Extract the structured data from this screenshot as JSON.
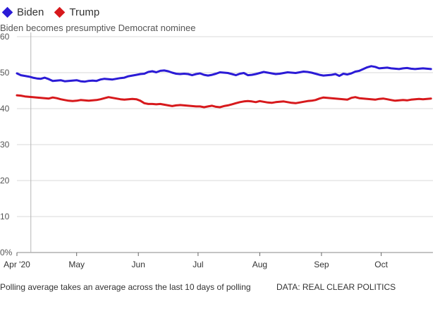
{
  "legend": [
    {
      "name": "Biden",
      "color": "#2b1bd6"
    },
    {
      "name": "Trump",
      "color": "#d7191c"
    }
  ],
  "annotation": "Biden becomes presumptive Democrat nominee",
  "footnote": "Polling average takes an average across the last 10 days of polling",
  "source": "DATA: REAL CLEAR POLITICS",
  "chart_data": {
    "type": "line",
    "title": "",
    "xlabel": "",
    "ylabel": "",
    "ylim": [
      0,
      60
    ],
    "yticks": [
      {
        "value": 0,
        "label": "0%"
      },
      {
        "value": 10,
        "label": "10"
      },
      {
        "value": 20,
        "label": "20"
      },
      {
        "value": 30,
        "label": "30"
      },
      {
        "value": 40,
        "label": "40"
      },
      {
        "value": 50,
        "label": "50"
      },
      {
        "value": 60,
        "label": "60"
      }
    ],
    "xlim": [
      0,
      209
    ],
    "xticks": [
      {
        "day": 0,
        "label": "Apr '20"
      },
      {
        "day": 30,
        "label": "May"
      },
      {
        "day": 61,
        "label": "Jun"
      },
      {
        "day": 91,
        "label": "Jul"
      },
      {
        "day": 122,
        "label": "Aug"
      },
      {
        "day": 153,
        "label": "Sep"
      },
      {
        "day": 183,
        "label": "Oct"
      }
    ],
    "annotation_day": 7,
    "x": [
      0,
      2,
      4,
      6,
      8,
      10,
      12,
      14,
      16,
      18,
      20,
      22,
      24,
      26,
      28,
      30,
      32,
      34,
      36,
      38,
      40,
      42,
      44,
      46,
      48,
      50,
      52,
      54,
      56,
      58,
      60,
      62,
      64,
      66,
      68,
      70,
      72,
      74,
      76,
      78,
      80,
      82,
      84,
      86,
      88,
      90,
      92,
      94,
      96,
      98,
      100,
      102,
      104,
      106,
      108,
      110,
      112,
      114,
      116,
      118,
      120,
      122,
      124,
      126,
      128,
      130,
      132,
      134,
      136,
      138,
      140,
      142,
      144,
      146,
      148,
      150,
      152,
      154,
      156,
      158,
      160,
      162,
      164,
      166,
      168,
      170,
      172,
      174,
      176,
      178,
      180,
      182,
      184,
      186,
      188,
      190,
      192,
      194,
      196,
      198,
      200,
      202,
      204,
      206,
      208
    ],
    "series": [
      {
        "name": "Biden",
        "color": "#2b1bd6",
        "values": [
          49.8,
          49.3,
          49.1,
          48.9,
          48.6,
          48.4,
          48.3,
          48.6,
          48.2,
          47.7,
          47.8,
          47.9,
          47.6,
          47.7,
          47.8,
          47.9,
          47.6,
          47.5,
          47.7,
          47.8,
          47.7,
          48.1,
          48.3,
          48.2,
          48.1,
          48.3,
          48.5,
          48.6,
          49.0,
          49.2,
          49.4,
          49.6,
          49.7,
          50.2,
          50.4,
          50.1,
          50.5,
          50.6,
          50.4,
          50.0,
          49.7,
          49.6,
          49.7,
          49.6,
          49.3,
          49.6,
          49.8,
          49.4,
          49.2,
          49.4,
          49.7,
          50.1,
          50.0,
          49.9,
          49.6,
          49.3,
          49.7,
          49.9,
          49.3,
          49.4,
          49.6,
          49.9,
          50.2,
          50.0,
          49.8,
          49.6,
          49.7,
          49.9,
          50.1,
          50.0,
          49.9,
          50.1,
          50.3,
          50.2,
          50.0,
          49.7,
          49.4,
          49.2,
          49.3,
          49.4,
          49.6,
          49.1,
          49.7,
          49.5,
          49.8,
          50.3,
          50.5,
          51.0,
          51.5,
          51.8,
          51.6,
          51.2,
          51.3,
          51.4,
          51.2,
          51.1,
          51.0,
          51.2,
          51.3,
          51.1,
          51.0,
          51.1,
          51.2,
          51.1,
          51.0
        ]
      },
      {
        "name": "Trump",
        "color": "#d7191c",
        "values": [
          43.7,
          43.6,
          43.4,
          43.3,
          43.2,
          43.1,
          43.0,
          42.9,
          42.8,
          43.1,
          42.9,
          42.6,
          42.4,
          42.2,
          42.1,
          42.2,
          42.4,
          42.3,
          42.2,
          42.3,
          42.4,
          42.6,
          42.9,
          43.2,
          43.0,
          42.8,
          42.6,
          42.5,
          42.6,
          42.7,
          42.6,
          42.2,
          41.5,
          41.3,
          41.3,
          41.2,
          41.3,
          41.1,
          40.9,
          40.7,
          40.9,
          41.0,
          40.9,
          40.8,
          40.7,
          40.6,
          40.6,
          40.4,
          40.6,
          40.8,
          40.5,
          40.4,
          40.7,
          40.9,
          41.2,
          41.5,
          41.8,
          42.0,
          42.1,
          42.0,
          41.8,
          42.1,
          41.9,
          41.7,
          41.6,
          41.8,
          41.9,
          42.0,
          41.8,
          41.6,
          41.5,
          41.7,
          41.9,
          42.1,
          42.2,
          42.4,
          42.8,
          43.1,
          43.0,
          42.9,
          42.8,
          42.7,
          42.6,
          42.5,
          43.0,
          43.2,
          42.9,
          42.8,
          42.7,
          42.6,
          42.5,
          42.7,
          42.8,
          42.6,
          42.4,
          42.2,
          42.3,
          42.4,
          42.3,
          42.5,
          42.6,
          42.7,
          42.6,
          42.7,
          42.8
        ]
      }
    ]
  }
}
